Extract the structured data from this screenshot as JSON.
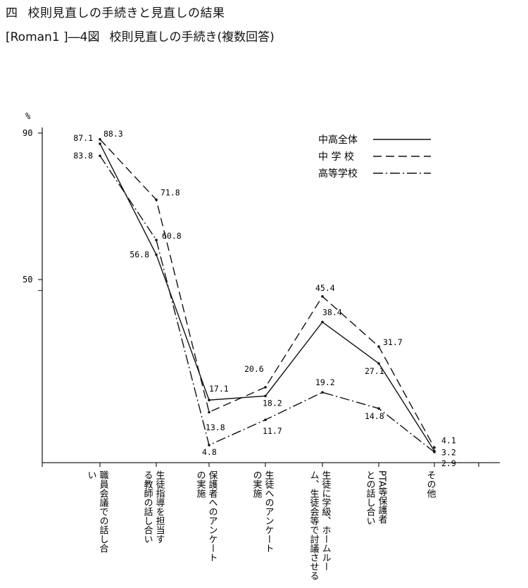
{
  "section": {
    "number": "四",
    "title": "校則見直しの手続きと見直しの結果"
  },
  "figure": {
    "caption": "[Roman1 ]―4図",
    "title": "校則見直しの手続き(複数回答)"
  },
  "chart_data": {
    "type": "line",
    "yunit": "%",
    "ylim": [
      0,
      90
    ],
    "yticks": [
      90,
      50
    ],
    "categories": [
      "職員会議での話し合い",
      "生徒指導を担当する教師の話し合い",
      "保護者へのアンケートの実施",
      "生徒へのアンケートの実施",
      "生徒に学級、ホームルーム、生徒会等で討議させる",
      "PTA等保護者との話し合い",
      "その他"
    ],
    "series": [
      {
        "name": "中高全体",
        "style": "solid",
        "values": [
          87.1,
          56.8,
          17.1,
          18.2,
          38.4,
          27.1,
          3.2
        ]
      },
      {
        "name": "中 学 校",
        "style": "dashed",
        "values": [
          88.3,
          71.8,
          13.8,
          20.6,
          45.4,
          31.7,
          4.1
        ]
      },
      {
        "name": "高等学校",
        "style": "dashdot",
        "values": [
          83.8,
          60.8,
          4.8,
          11.7,
          19.2,
          14.8,
          2.9
        ]
      }
    ]
  }
}
